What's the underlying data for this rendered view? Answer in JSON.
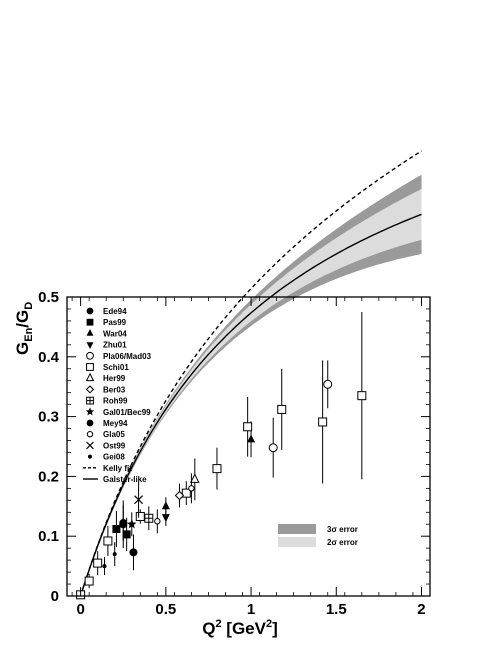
{
  "chart_data": {
    "type": "scatter",
    "ylabel": {
      "main": "G",
      "sub1": "En",
      "sep": "/G",
      "sub2": "D"
    },
    "xlabel": {
      "pre": "Q",
      "sup": "2",
      "post": " [GeV",
      "sup2": "2",
      "end": "]"
    },
    "xlim": [
      -0.08,
      2.05
    ],
    "ylim": [
      0,
      0.5
    ],
    "x_ticks": [
      0,
      0.5,
      1,
      1.5,
      2
    ],
    "x_tick_labels": [
      "0",
      "0.5",
      "1",
      "1.5",
      "2"
    ],
    "y_ticks": [
      0,
      0.1,
      0.2,
      0.3,
      0.4,
      0.5
    ],
    "y_tick_labels": [
      "0",
      "0.1",
      "0.2",
      "0.3",
      "0.4",
      "0.5"
    ],
    "series": [
      {
        "name": "Ede94",
        "marker": "filled-circle",
        "points": [
          [
            0.25,
            0.122,
            0.03
          ],
          [
            0.31,
            0.073,
            0.03
          ]
        ]
      },
      {
        "name": "Pas99",
        "marker": "filled-square",
        "points": [
          [
            0.21,
            0.112,
            0.03
          ],
          [
            0.27,
            0.103,
            0.028
          ]
        ]
      },
      {
        "name": "War04",
        "marker": "filled-triangle-up",
        "points": [
          [
            0.5,
            0.15,
            0.015
          ],
          [
            1.0,
            0.262,
            0.03
          ]
        ]
      },
      {
        "name": "Zhu01",
        "marker": "filled-triangle-down",
        "points": [
          [
            0.5,
            0.132,
            0.015
          ]
        ]
      },
      {
        "name": "Pla06/Mad03",
        "marker": "open-circle",
        "points": [
          [
            1.13,
            0.248,
            0.05
          ],
          [
            1.45,
            0.354,
            0.04
          ]
        ]
      },
      {
        "name": "Schi01",
        "marker": "open-square",
        "points": [
          [
            0.0,
            0.002,
            0.004
          ],
          [
            0.05,
            0.025,
            0.012
          ],
          [
            0.1,
            0.055,
            0.02
          ],
          [
            0.16,
            0.092,
            0.025
          ],
          [
            0.35,
            0.133,
            0.012
          ],
          [
            0.62,
            0.172,
            0.02
          ],
          [
            0.8,
            0.213,
            0.035
          ],
          [
            0.98,
            0.283,
            0.05
          ],
          [
            1.18,
            0.312,
            0.068
          ],
          [
            1.42,
            0.291,
            0.103
          ],
          [
            1.65,
            0.335,
            0.14
          ]
        ]
      },
      {
        "name": "Her99",
        "marker": "open-triangle-up",
        "points": [
          [
            0.67,
            0.195,
            0.035
          ]
        ]
      },
      {
        "name": "Ber03",
        "marker": "open-diamond",
        "points": [
          [
            0.58,
            0.168,
            0.02
          ]
        ]
      },
      {
        "name": "Roh99",
        "marker": "open-crossed-square",
        "points": [
          [
            0.4,
            0.13,
            0.02
          ]
        ]
      },
      {
        "name": "Gal01/Bec99",
        "marker": "filled-star",
        "points": [
          [
            0.3,
            0.12,
            0.02
          ]
        ]
      },
      {
        "name": "Mey94",
        "marker": "filled-circle",
        "points": [
          [
            0.25,
            0.12,
            0.04
          ]
        ]
      },
      {
        "name": "Gla05",
        "marker": "small-open-circle",
        "points": [
          [
            0.45,
            0.125,
            0.02
          ],
          [
            0.65,
            0.18,
            0.025
          ]
        ]
      },
      {
        "name": "Ost99",
        "marker": "cross",
        "points": [
          [
            0.34,
            0.161,
            0.03
          ]
        ]
      },
      {
        "name": "Gei08",
        "marker": "small-filled-circle",
        "points": [
          [
            0.14,
            0.05,
            0.015
          ],
          [
            0.2,
            0.07,
            0.02
          ]
        ]
      }
    ],
    "curves": [
      {
        "name": "Kelly fit",
        "style": "dashed"
      },
      {
        "name": "Galster-like",
        "style": "solid"
      }
    ],
    "bands": [
      {
        "name": "3σ error",
        "color": "#9a9a9a"
      },
      {
        "name": "2σ error",
        "color": "#dcdcdc"
      }
    ]
  }
}
